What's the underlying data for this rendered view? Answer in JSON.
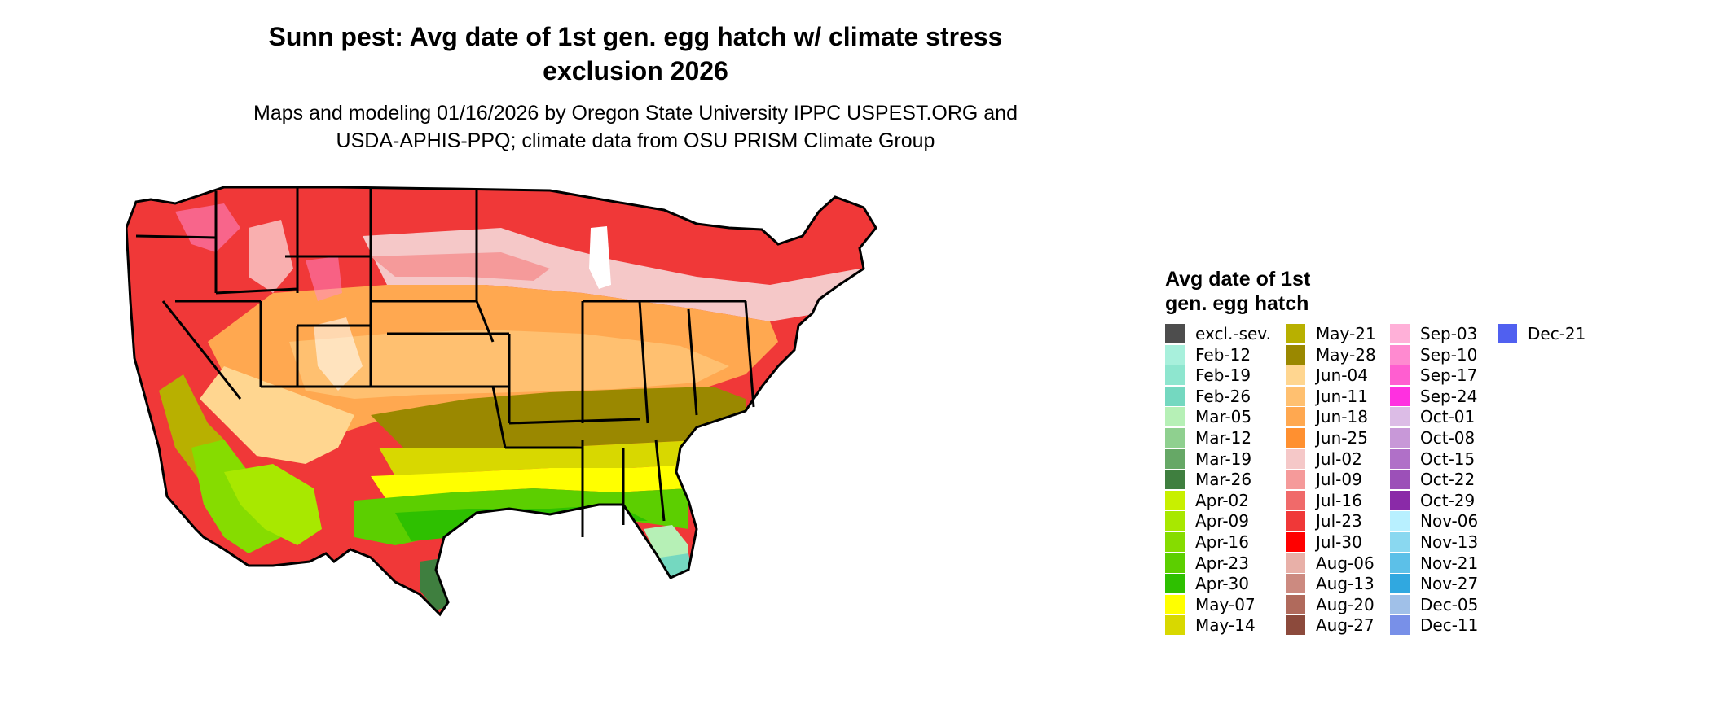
{
  "title_line1": "Sunn pest: Avg date of 1st gen. egg hatch w/ climate stress",
  "title_line2": "exclusion 2026",
  "subtitle_line1": "Maps and modeling 01/16/2026 by Oregon State University IPPC USPEST.ORG and",
  "subtitle_line2": "USDA-APHIS-PPQ; climate data from OSU PRISM Climate Group",
  "legend": {
    "title_line1": "Avg date of 1st",
    "title_line2": "gen. egg hatch",
    "items": [
      {
        "label": "excl.-sev.",
        "color": "#4d4d4d"
      },
      {
        "label": "Feb-12",
        "color": "#a8f0dc"
      },
      {
        "label": "Feb-19",
        "color": "#8ee6cf"
      },
      {
        "label": "Feb-26",
        "color": "#74d8c0"
      },
      {
        "label": "Mar-05",
        "color": "#b6f0b6"
      },
      {
        "label": "Mar-12",
        "color": "#8fd08f"
      },
      {
        "label": "Mar-19",
        "color": "#66a866"
      },
      {
        "label": "Mar-26",
        "color": "#3f7f3f"
      },
      {
        "label": "Apr-02",
        "color": "#c8f000"
      },
      {
        "label": "Apr-09",
        "color": "#a8e800"
      },
      {
        "label": "Apr-16",
        "color": "#86dc00"
      },
      {
        "label": "Apr-23",
        "color": "#5ccf00"
      },
      {
        "label": "Apr-30",
        "color": "#2ec000"
      },
      {
        "label": "May-07",
        "color": "#ffff00"
      },
      {
        "label": "May-14",
        "color": "#d8d800"
      },
      {
        "label": "May-21",
        "color": "#b8b000"
      },
      {
        "label": "May-28",
        "color": "#9a8800"
      },
      {
        "label": "Jun-04",
        "color": "#ffd690"
      },
      {
        "label": "Jun-11",
        "color": "#ffc070"
      },
      {
        "label": "Jun-18",
        "color": "#ffa850"
      },
      {
        "label": "Jun-25",
        "color": "#ff9030"
      },
      {
        "label": "Jul-02",
        "color": "#f5c8c8"
      },
      {
        "label": "Jul-09",
        "color": "#f59a9a"
      },
      {
        "label": "Jul-16",
        "color": "#f06a6a"
      },
      {
        "label": "Jul-23",
        "color": "#f03838"
      },
      {
        "label": "Jul-30",
        "color": "#ff0000"
      },
      {
        "label": "Aug-06",
        "color": "#e8b0a8"
      },
      {
        "label": "Aug-13",
        "color": "#cc8a80"
      },
      {
        "label": "Aug-20",
        "color": "#b06a5c"
      },
      {
        "label": "Aug-27",
        "color": "#8c4a3c"
      },
      {
        "label": "Sep-03",
        "color": "#ffb0d8"
      },
      {
        "label": "Sep-10",
        "color": "#ff8ad0"
      },
      {
        "label": "Sep-17",
        "color": "#ff5ed0"
      },
      {
        "label": "Sep-24",
        "color": "#ff30e0"
      },
      {
        "label": "Oct-01",
        "color": "#dcbce6"
      },
      {
        "label": "Oct-08",
        "color": "#c898d8"
      },
      {
        "label": "Oct-15",
        "color": "#b070c8"
      },
      {
        "label": "Oct-22",
        "color": "#9c50b8"
      },
      {
        "label": "Oct-29",
        "color": "#8a2aa8"
      },
      {
        "label": "Nov-06",
        "color": "#b8f0ff"
      },
      {
        "label": "Nov-13",
        "color": "#8ad8f0"
      },
      {
        "label": "Nov-21",
        "color": "#5cc0e8"
      },
      {
        "label": "Nov-27",
        "color": "#30a8e0"
      },
      {
        "label": "Dec-05",
        "color": "#a0c0e8"
      },
      {
        "label": "Dec-11",
        "color": "#7890e8"
      },
      {
        "label": "Dec-21",
        "color": "#5060f0"
      }
    ]
  }
}
